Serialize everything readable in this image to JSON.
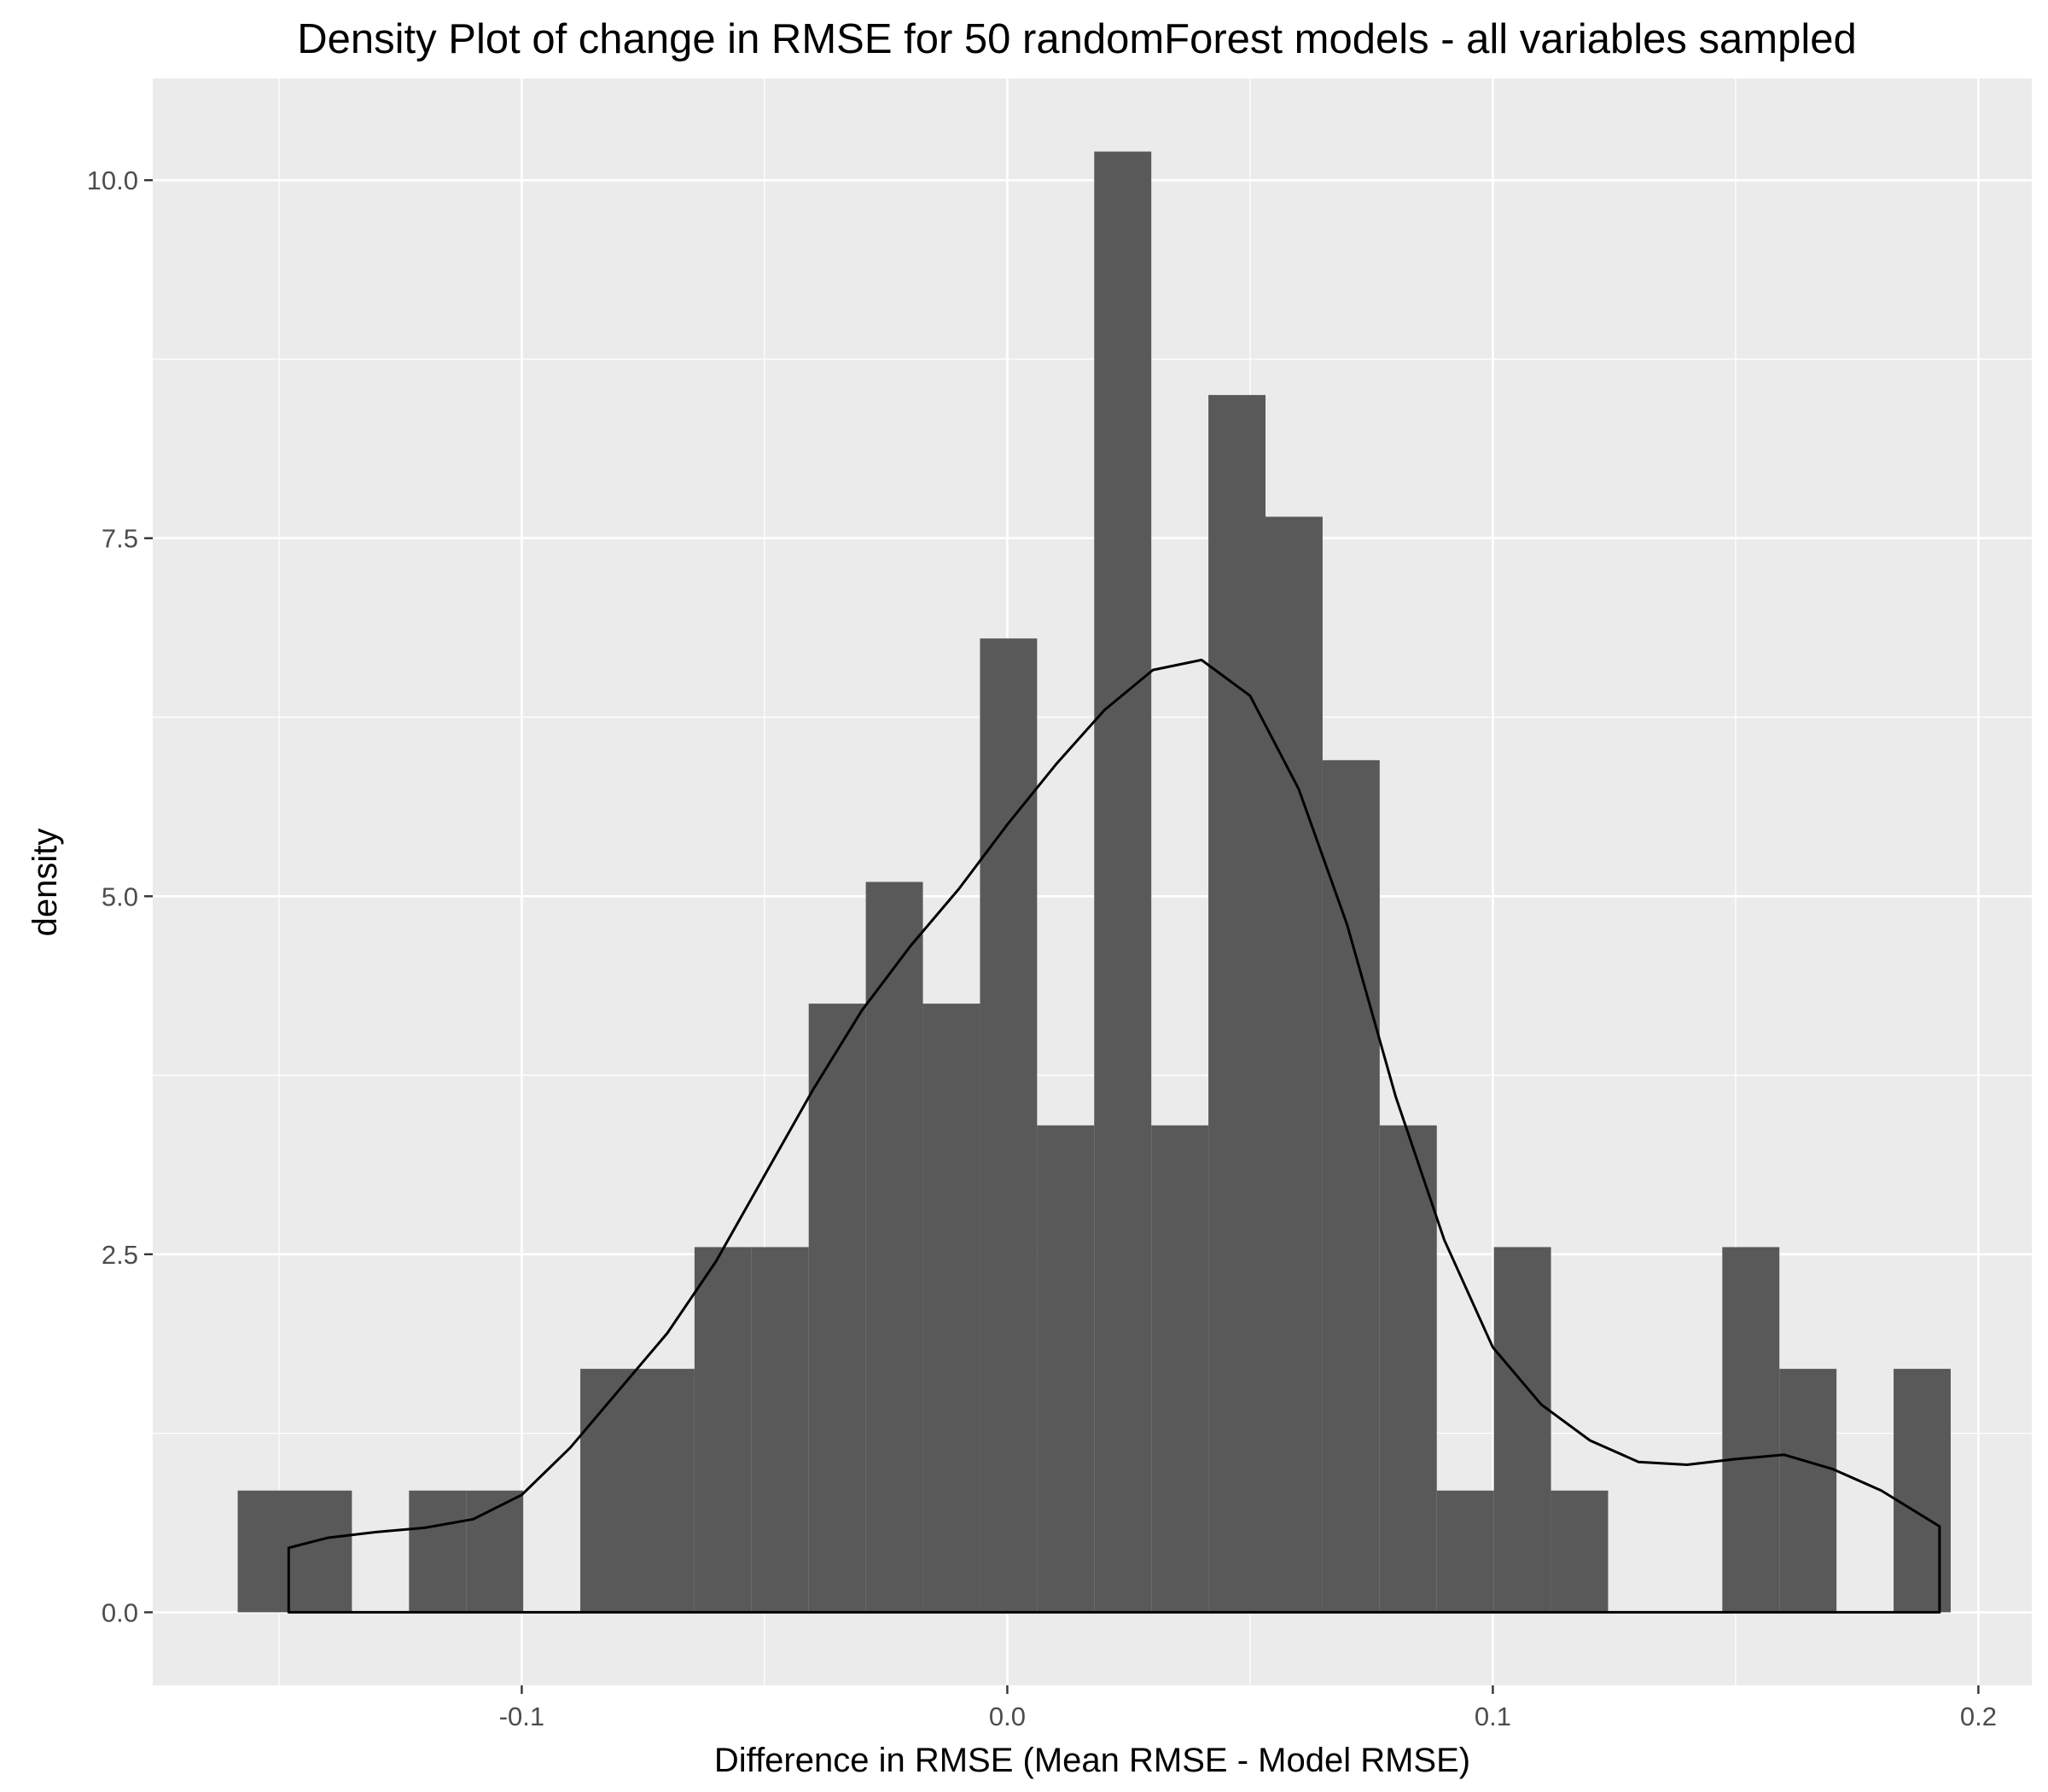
{
  "chart_data": {
    "type": "bar",
    "title": "Density Plot of change in RMSE for 50 randomForest models - all variables sampled",
    "xlabel": "Difference in RMSE (Mean RMSE - Model RMSE)",
    "ylabel": "density",
    "xlim": [
      -0.176,
      0.211
    ],
    "ylim": [
      -0.51,
      10.71
    ],
    "x_ticks": [
      {
        "value": -0.1,
        "label": "-0.1"
      },
      {
        "value": 0.0,
        "label": "0.0"
      },
      {
        "value": 0.1,
        "label": "0.1"
      },
      {
        "value": 0.2,
        "label": "0.2"
      }
    ],
    "y_ticks": [
      {
        "value": 0.0,
        "label": "0.0"
      },
      {
        "value": 2.5,
        "label": "2.5"
      },
      {
        "value": 5.0,
        "label": "5.0"
      },
      {
        "value": 7.5,
        "label": "7.5"
      },
      {
        "value": 10.0,
        "label": "10.0"
      }
    ],
    "grid": true,
    "bin_width": 0.01176,
    "bins_start": -0.1585,
    "histogram_density": [
      0.85,
      0.85,
      0,
      0.85,
      0.85,
      0,
      1.7,
      1.7,
      2.55,
      2.55,
      4.25,
      5.1,
      4.25,
      6.8,
      3.4,
      10.2,
      3.4,
      8.5,
      7.65,
      5.95,
      3.4,
      0.85,
      2.55,
      0.85,
      0,
      0,
      2.55,
      1.7,
      0,
      1.7
    ],
    "density_curve": {
      "x": [
        -0.148,
        -0.14,
        -0.13,
        -0.12,
        -0.11,
        -0.1,
        -0.09,
        -0.08,
        -0.07,
        -0.06,
        -0.05,
        -0.04,
        -0.03,
        -0.02,
        -0.01,
        0.0,
        0.01,
        0.02,
        0.03,
        0.04,
        0.05,
        0.06,
        0.07,
        0.08,
        0.09,
        0.1,
        0.11,
        0.12,
        0.13,
        0.14,
        0.15,
        0.16,
        0.17,
        0.18,
        0.192
      ],
      "y": [
        0.45,
        0.52,
        0.56,
        0.59,
        0.65,
        0.82,
        1.15,
        1.55,
        1.95,
        2.45,
        3.05,
        3.65,
        4.2,
        4.65,
        5.05,
        5.5,
        5.92,
        6.3,
        6.58,
        6.65,
        6.4,
        5.75,
        4.8,
        3.6,
        2.6,
        1.85,
        1.45,
        1.2,
        1.05,
        1.03,
        1.07,
        1.1,
        1.0,
        0.85,
        0.6
      ]
    },
    "colors": {
      "panel_background": "#ebebeb",
      "grid_line": "#ffffff",
      "bar_fill": "#595959",
      "density_line": "#000000",
      "tick_label": "#4d4d4d"
    }
  }
}
